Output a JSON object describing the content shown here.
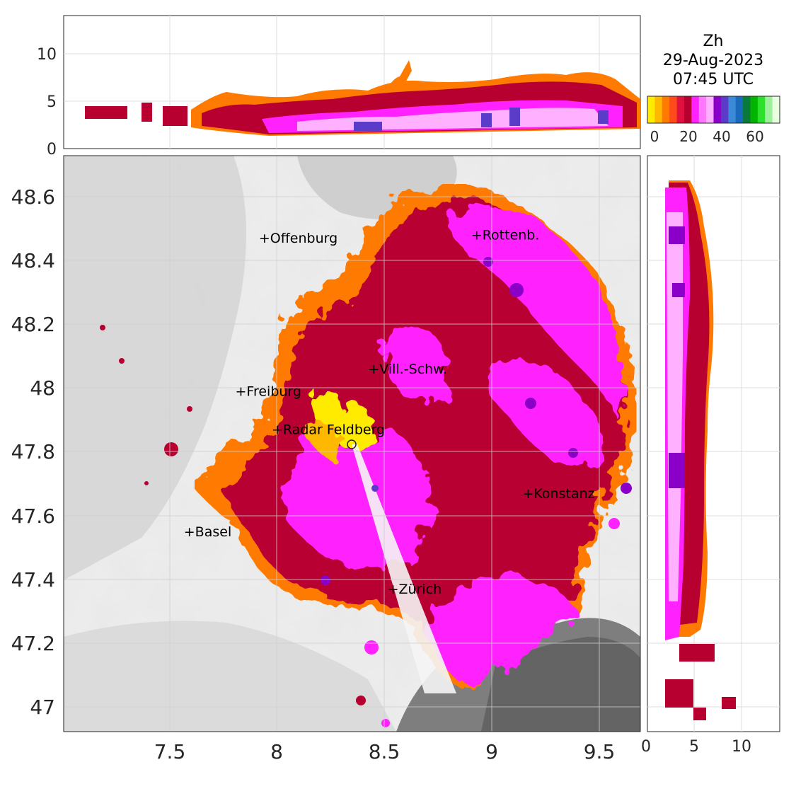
{
  "title": {
    "product": "Zh",
    "date": "29-Aug-2023",
    "time": "07:45 UTC"
  },
  "main_map": {
    "xticks": [
      "7.5",
      "8",
      "8.5",
      "9",
      "9.5"
    ],
    "yticks": [
      "48.6",
      "48.4",
      "48.2",
      "48",
      "47.8",
      "47.6",
      "47.4",
      "47.2",
      "47"
    ],
    "cities": [
      {
        "name": "Offenburg",
        "lon": 7.94,
        "lat": 48.47
      },
      {
        "name": "Rottenb.",
        "lon": 8.93,
        "lat": 48.48
      },
      {
        "name": "Vill.-Schw.",
        "lon": 8.45,
        "lat": 48.06
      },
      {
        "name": "Freiburg",
        "lon": 7.83,
        "lat": 47.99
      },
      {
        "name": "Radar Feldberg",
        "lon": 8.0,
        "lat": 47.87
      },
      {
        "name": "Konstanz",
        "lon": 9.17,
        "lat": 47.67
      },
      {
        "name": "Basel",
        "lon": 7.59,
        "lat": 47.55
      },
      {
        "name": "Zürich",
        "lon": 8.54,
        "lat": 47.37
      }
    ],
    "radar_site": {
      "lon": 8.35,
      "lat": 47.82
    }
  },
  "top_profile": {
    "yticks": [
      "10",
      "5",
      "0"
    ]
  },
  "right_profile": {
    "xticks": [
      "0",
      "5",
      "10"
    ]
  },
  "colorbar": {
    "ticks": [
      "0",
      "20",
      "40",
      "60"
    ],
    "colors": [
      "#ffeb00",
      "#ffb800",
      "#ff7a00",
      "#ff4a1a",
      "#e01040",
      "#b80030",
      "#ff22ff",
      "#ff77ff",
      "#ffb0ff",
      "#8a00c8",
      "#5a3cc8",
      "#3a8ad8",
      "#1a6abb",
      "#0a7a3a",
      "#00b400",
      "#2ce02c",
      "#9cf09c",
      "#e8ffe0"
    ]
  }
}
